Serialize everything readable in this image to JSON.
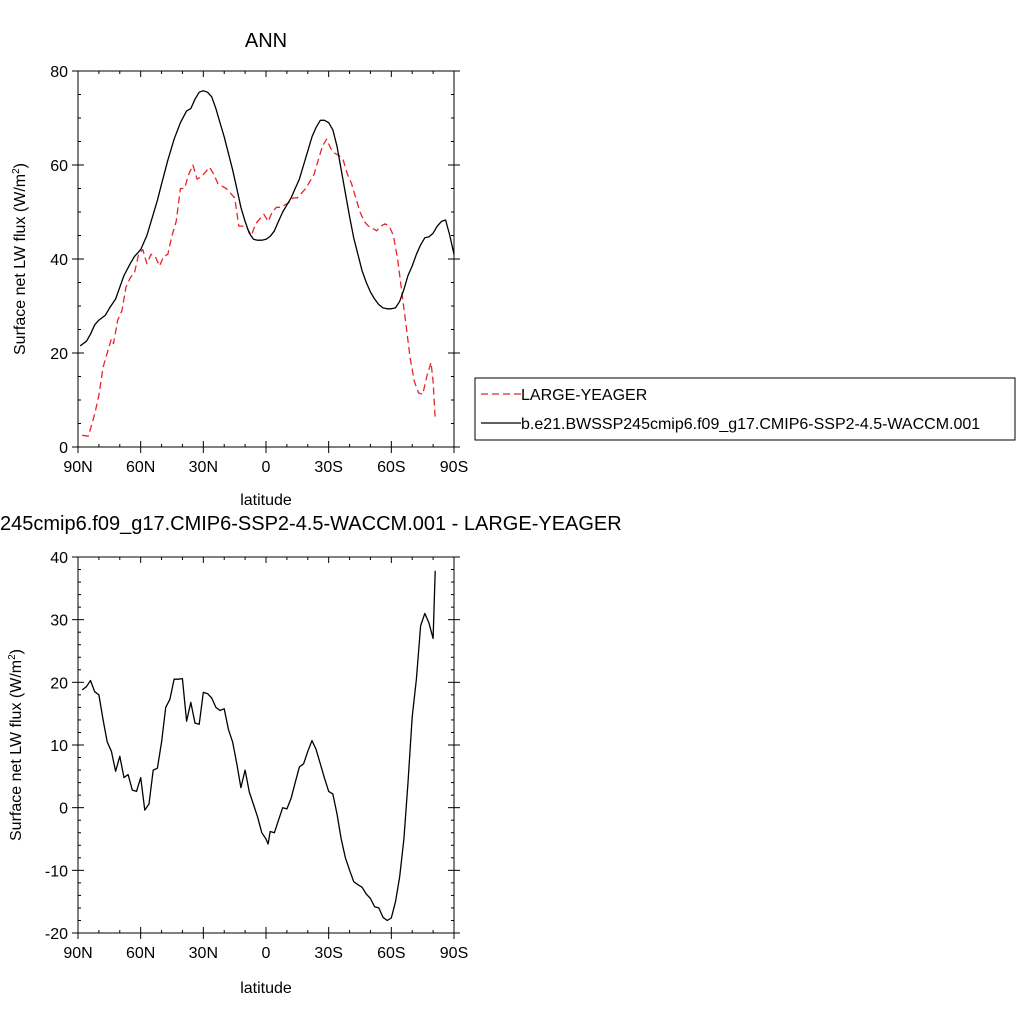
{
  "panel1": {
    "title": "ANN",
    "xlabel": "latitude",
    "ylabel_main": "Surface net LW flux (W/m",
    "ylabel_sup": "2",
    "ylabel_close": ")",
    "legend": {
      "position": "right",
      "entries": [
        "LARGE-YEAGER",
        "b.e21.BWSSP245cmip6.f09_g17.CMIP6-SSP2-4.5-WACCM.001"
      ]
    }
  },
  "panel2": {
    "title": "245cmip6.f09_g17.CMIP6-SSP2-4.5-WACCM.001 - LARGE-YEAGER",
    "xlabel": "latitude",
    "ylabel_main": "Surface net LW flux (W/m",
    "ylabel_sup": "2",
    "ylabel_close": ")"
  },
  "colors": {
    "model": "#000000",
    "obs": "#e8242a",
    "axis": "#000000"
  },
  "chart_data": [
    {
      "type": "line",
      "title": "ANN",
      "xlabel": "latitude",
      "ylabel": "Surface net LW flux (W/m2)",
      "xlim": [
        90,
        -90
      ],
      "ylim": [
        0,
        80
      ],
      "xticks": [
        90,
        60,
        30,
        0,
        -30,
        -60,
        -90
      ],
      "xtick_labels": [
        "90N",
        "60N",
        "30N",
        "0",
        "30S",
        "60S",
        "90S"
      ],
      "yticks": [
        0,
        20,
        40,
        60,
        80
      ],
      "ytick_labels": [
        "0",
        "20",
        "40",
        "60",
        "80"
      ],
      "series": [
        {
          "name": "LARGE-YEAGER",
          "style": "dashed",
          "color": "#e8242a",
          "points": [
            [
              88,
              2.5
            ],
            [
              85,
              2.3
            ],
            [
              82,
              7
            ],
            [
              80,
              11
            ],
            [
              78,
              17
            ],
            [
              76,
              20
            ],
            [
              74,
              23
            ],
            [
              73,
              22
            ],
            [
              71,
              27
            ],
            [
              69,
              29
            ],
            [
              67,
              34
            ],
            [
              65,
              36
            ],
            [
              63,
              37
            ],
            [
              61,
              41
            ],
            [
              59,
              42
            ],
            [
              57,
              39
            ],
            [
              55,
              41
            ],
            [
              53,
              40.5
            ],
            [
              51,
              38.5
            ],
            [
              49,
              40.5
            ],
            [
              47,
              41
            ],
            [
              45,
              45
            ],
            [
              43,
              48
            ],
            [
              41,
              55
            ],
            [
              39,
              55
            ],
            [
              37,
              58
            ],
            [
              35,
              60
            ],
            [
              33,
              57
            ],
            [
              31,
              57.5
            ],
            [
              29,
              58.5
            ],
            [
              27,
              59.5
            ],
            [
              25,
              58
            ],
            [
              23,
              56
            ],
            [
              21,
              55.5
            ],
            [
              19,
              55
            ],
            [
              17,
              54
            ],
            [
              15,
              53
            ],
            [
              13,
              47
            ],
            [
              11,
              47
            ],
            [
              9,
              46.5
            ],
            [
              7,
              45
            ],
            [
              5,
              47.5
            ],
            [
              3,
              48.5
            ],
            [
              1,
              49.5
            ],
            [
              -1,
              48
            ],
            [
              -3,
              50
            ],
            [
              -5,
              51
            ],
            [
              -7,
              51
            ],
            [
              -9,
              51.5
            ],
            [
              -11,
              52
            ],
            [
              -13,
              53
            ],
            [
              -15,
              53
            ],
            [
              -17,
              54
            ],
            [
              -19,
              55
            ],
            [
              -21,
              56.5
            ],
            [
              -23,
              58
            ],
            [
              -25,
              61
            ],
            [
              -27,
              64
            ],
            [
              -29,
              65.5
            ],
            [
              -31,
              63.5
            ],
            [
              -33,
              62.5
            ],
            [
              -35,
              62
            ],
            [
              -37,
              61
            ],
            [
              -39,
              58
            ],
            [
              -41,
              56
            ],
            [
              -43,
              53
            ],
            [
              -45,
              50
            ],
            [
              -47,
              48
            ],
            [
              -49,
              47
            ],
            [
              -51,
              46.5
            ],
            [
              -53,
              46
            ],
            [
              -55,
              47
            ],
            [
              -57,
              47.5
            ],
            [
              -59,
              47
            ],
            [
              -61,
              45
            ],
            [
              -63,
              40
            ],
            [
              -65,
              33
            ],
            [
              -67,
              26
            ],
            [
              -69,
              19
            ],
            [
              -71,
              14
            ],
            [
              -73,
              11.5
            ],
            [
              -75,
              11.2
            ],
            [
              -77,
              15
            ],
            [
              -79,
              18
            ],
            [
              -80,
              14
            ],
            [
              -81,
              6
            ]
          ]
        },
        {
          "name": "b.e21.BWSSP245cmip6.f09_g17.CMIP6-SSP2-4.5-WACCM.001",
          "style": "solid",
          "color": "#000000",
          "points": [
            [
              89,
              21.5
            ],
            [
              86,
              22.5
            ],
            [
              84,
              24
            ],
            [
              82,
              26
            ],
            [
              80,
              27
            ],
            [
              77,
              28
            ],
            [
              75,
              29.5
            ],
            [
              72,
              31.5
            ],
            [
              70,
              34
            ],
            [
              68,
              36.5
            ],
            [
              65,
              39
            ],
            [
              63,
              40.5
            ],
            [
              60,
              42
            ],
            [
              57,
              45
            ],
            [
              55,
              48
            ],
            [
              52,
              52.5
            ],
            [
              50,
              56
            ],
            [
              47,
              61
            ],
            [
              44,
              65.5
            ],
            [
              41,
              69
            ],
            [
              38,
              71.5
            ],
            [
              36,
              72
            ],
            [
              34,
              74
            ],
            [
              32,
              75.5
            ],
            [
              30,
              75.8
            ],
            [
              28,
              75.5
            ],
            [
              26,
              74.5
            ],
            [
              24,
              72
            ],
            [
              22,
              69
            ],
            [
              20,
              66
            ],
            [
              18,
              62.5
            ],
            [
              16,
              59
            ],
            [
              14,
              55
            ],
            [
              12,
              51
            ],
            [
              10,
              48
            ],
            [
              8,
              45.5
            ],
            [
              6,
              44.2
            ],
            [
              4,
              44
            ],
            [
              2,
              44
            ],
            [
              0,
              44.2
            ],
            [
              -2,
              44.8
            ],
            [
              -4,
              46
            ],
            [
              -6,
              48
            ],
            [
              -8,
              50
            ],
            [
              -10,
              51.5
            ],
            [
              -12,
              53
            ],
            [
              -14,
              55
            ],
            [
              -16,
              57
            ],
            [
              -18,
              60
            ],
            [
              -20,
              63
            ],
            [
              -22,
              66
            ],
            [
              -24,
              68
            ],
            [
              -26,
              69.5
            ],
            [
              -28,
              69.5
            ],
            [
              -30,
              69
            ],
            [
              -32,
              67.5
            ],
            [
              -34,
              64
            ],
            [
              -36,
              59
            ],
            [
              -38,
              54
            ],
            [
              -40,
              49
            ],
            [
              -42,
              44.5
            ],
            [
              -44,
              41
            ],
            [
              -46,
              37.5
            ],
            [
              -48,
              35
            ],
            [
              -50,
              33
            ],
            [
              -52,
              31.5
            ],
            [
              -54,
              30.3
            ],
            [
              -56,
              29.6
            ],
            [
              -58,
              29.4
            ],
            [
              -60,
              29.4
            ],
            [
              -62,
              29.6
            ],
            [
              -64,
              31
            ],
            [
              -66,
              33.5
            ],
            [
              -68,
              36.5
            ],
            [
              -70,
              38.5
            ],
            [
              -72,
              41
            ],
            [
              -74,
              43
            ],
            [
              -76,
              44.5
            ],
            [
              -78,
              44.7
            ],
            [
              -80,
              45.5
            ],
            [
              -82,
              47
            ],
            [
              -84,
              48
            ],
            [
              -86,
              48.3
            ],
            [
              -88,
              45
            ],
            [
              -90,
              41
            ]
          ]
        }
      ]
    },
    {
      "type": "line",
      "title": "245cmip6.f09_g17.CMIP6-SSP2-4.5-WACCM.001 - LARGE-YEAGER",
      "xlabel": "latitude",
      "ylabel": "Surface net LW flux (W/m2)",
      "xlim": [
        90,
        -90
      ],
      "ylim": [
        -20,
        40
      ],
      "xticks": [
        90,
        60,
        30,
        0,
        -30,
        -60,
        -90
      ],
      "xtick_labels": [
        "90N",
        "60N",
        "30N",
        "0",
        "30S",
        "60S",
        "90S"
      ],
      "yticks": [
        -20,
        -10,
        0,
        10,
        20,
        30,
        40
      ],
      "ytick_labels": [
        "-20",
        "-10",
        "0",
        "10",
        "20",
        "30",
        "40"
      ],
      "series": [
        {
          "style": "solid",
          "color": "#000000",
          "points": [
            [
              88,
              18.8
            ],
            [
              86,
              19.3
            ],
            [
              84,
              20.3
            ],
            [
              82,
              18.5
            ],
            [
              80,
              18
            ],
            [
              78,
              14
            ],
            [
              76,
              10.5
            ],
            [
              74,
              9
            ],
            [
              72,
              5.8
            ],
            [
              70,
              8.2
            ],
            [
              68,
              4.8
            ],
            [
              66,
              5.3
            ],
            [
              64,
              2.8
            ],
            [
              62,
              2.6
            ],
            [
              60,
              4.8
            ],
            [
              58,
              -0.4
            ],
            [
              56,
              0.6
            ],
            [
              54,
              6
            ],
            [
              52,
              6.3
            ],
            [
              50,
              10.5
            ],
            [
              48,
              16
            ],
            [
              46,
              17.3
            ],
            [
              44,
              20.5
            ],
            [
              42,
              20.5
            ],
            [
              40,
              20.6
            ],
            [
              38,
              13.8
            ],
            [
              36,
              16.8
            ],
            [
              34,
              13.5
            ],
            [
              32,
              13.3
            ],
            [
              30,
              18.4
            ],
            [
              28,
              18.2
            ],
            [
              26,
              17.5
            ],
            [
              24,
              16
            ],
            [
              22,
              15.5
            ],
            [
              20,
              15.8
            ],
            [
              18,
              12.5
            ],
            [
              16,
              10.5
            ],
            [
              14,
              7
            ],
            [
              12,
              3.2
            ],
            [
              10,
              6
            ],
            [
              8,
              2.5
            ],
            [
              6,
              0.5
            ],
            [
              4,
              -1.5
            ],
            [
              2,
              -4
            ],
            [
              0,
              -5
            ],
            [
              -1,
              -5.8
            ],
            [
              -2,
              -3.8
            ],
            [
              -4,
              -4
            ],
            [
              -6,
              -2
            ],
            [
              -8,
              0
            ],
            [
              -10,
              -0.2
            ],
            [
              -12,
              1.5
            ],
            [
              -14,
              4
            ],
            [
              -16,
              6.5
            ],
            [
              -18,
              7
            ],
            [
              -20,
              9
            ],
            [
              -22,
              10.7
            ],
            [
              -24,
              9.3
            ],
            [
              -26,
              7
            ],
            [
              -28,
              4.7
            ],
            [
              -30,
              2.6
            ],
            [
              -32,
              2.2
            ],
            [
              -34,
              -1
            ],
            [
              -36,
              -5
            ],
            [
              -38,
              -8
            ],
            [
              -40,
              -10
            ],
            [
              -42,
              -11.8
            ],
            [
              -44,
              -12.3
            ],
            [
              -46,
              -12.7
            ],
            [
              -48,
              -13.8
            ],
            [
              -50,
              -14.5
            ],
            [
              -52,
              -15.8
            ],
            [
              -54,
              -16
            ],
            [
              -56,
              -17.5
            ],
            [
              -58,
              -18
            ],
            [
              -60,
              -17.6
            ],
            [
              -62,
              -15
            ],
            [
              -64,
              -11
            ],
            [
              -66,
              -5
            ],
            [
              -68,
              4
            ],
            [
              -70,
              14.5
            ],
            [
              -72,
              20.5
            ],
            [
              -74,
              29
            ],
            [
              -76,
              31
            ],
            [
              -78,
              29.5
            ],
            [
              -80,
              27
            ],
            [
              -81,
              37.8
            ]
          ]
        }
      ]
    }
  ]
}
